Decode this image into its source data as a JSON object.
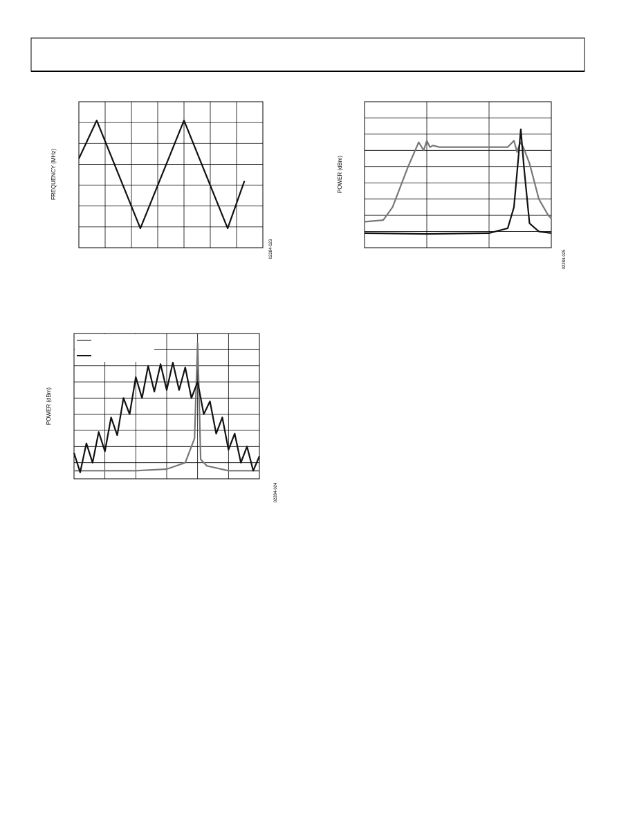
{
  "chart_data": [
    {
      "type": "line",
      "ylabel": "FREQUENCY (MHz)",
      "figure_code": "02284-023",
      "xlim": [
        0,
        7
      ],
      "ylim": [
        0,
        7
      ],
      "series": [
        {
          "color": "#111111",
          "x": [
            0,
            0.68,
            2.34,
            4.0,
            5.66,
            6.3
          ],
          "values": [
            4.27,
            6.1,
            0.93,
            6.1,
            0.93,
            3.2
          ]
        }
      ]
    },
    {
      "type": "line",
      "ylabel": "POWER (dBm)",
      "figure_code": "02284-025",
      "xlim": [
        0,
        3
      ],
      "ylim": [
        0,
        9
      ],
      "series": [
        {
          "color": "#777777",
          "x": [
            0,
            0.3,
            0.45,
            0.7,
            0.87,
            0.95,
            1.0,
            1.05,
            1.1,
            1.2,
            2.0,
            2.3,
            2.4,
            2.45,
            2.5,
            2.55,
            2.65,
            2.8,
            2.95,
            3.0
          ],
          "values": [
            1.6,
            1.7,
            2.5,
            5.0,
            6.5,
            6.0,
            6.6,
            6.2,
            6.3,
            6.2,
            6.2,
            6.2,
            6.6,
            5.9,
            6.5,
            6.2,
            5.2,
            3.0,
            2.0,
            1.8
          ]
        },
        {
          "color": "#111111",
          "x": [
            0,
            1,
            2,
            2.3,
            2.4,
            2.47,
            2.51,
            2.56,
            2.65,
            2.8,
            3.0
          ],
          "values": [
            0.9,
            0.85,
            0.9,
            1.2,
            2.5,
            5.5,
            7.3,
            5.0,
            1.5,
            1.0,
            0.9
          ]
        }
      ]
    },
    {
      "type": "line",
      "ylabel": "POWER (dBm)",
      "figure_code": "02284-024",
      "xlim": [
        0,
        6
      ],
      "ylim": [
        0,
        9
      ],
      "series": [
        {
          "color": "#777777",
          "x": [
            0,
            1,
            2,
            3,
            3.6,
            3.9,
            4.0,
            4.05,
            4.1,
            4.3,
            5,
            6
          ],
          "values": [
            0.5,
            0.5,
            0.5,
            0.6,
            1.0,
            2.5,
            8.4,
            5,
            1.2,
            0.8,
            0.5,
            0.5
          ]
        },
        {
          "color": "#111111",
          "x": [
            0,
            0.2,
            0.4,
            0.6,
            0.8,
            1.0,
            1.2,
            1.4,
            1.6,
            1.8,
            2.0,
            2.2,
            2.4,
            2.6,
            2.8,
            3.0,
            3.2,
            3.4,
            3.6,
            3.8,
            4.0,
            4.2,
            4.4,
            4.6,
            4.8,
            5.0,
            5.2,
            5.4,
            5.6,
            5.8,
            6.0
          ],
          "values": [
            1.6,
            0.4,
            2.2,
            1.0,
            2.9,
            1.7,
            3.8,
            2.7,
            5.0,
            4.0,
            6.3,
            5.0,
            7.0,
            5.4,
            7.1,
            5.5,
            7.2,
            5.5,
            6.9,
            5.0,
            6.0,
            4.0,
            4.8,
            2.8,
            3.8,
            1.8,
            2.8,
            1.0,
            2.0,
            0.5,
            1.4
          ]
        }
      ]
    }
  ]
}
